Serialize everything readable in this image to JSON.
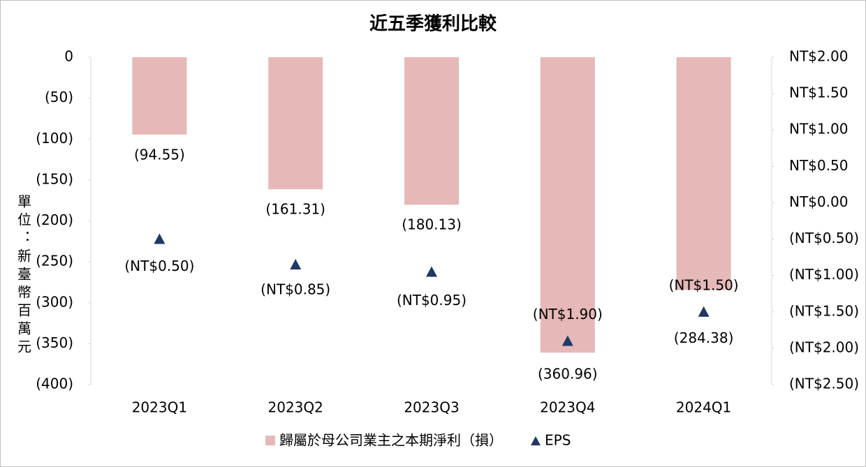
{
  "chart_data": {
    "type": "combo",
    "title": "近五季獲利比較",
    "y_label": "單位：新臺幣百萬元",
    "categories": [
      "2023Q1",
      "2023Q2",
      "2023Q3",
      "2023Q4",
      "2024Q1"
    ],
    "series": [
      {
        "name": "歸屬於母公司業主之本期淨利（損）",
        "type": "bar",
        "color": "#e6b8b7",
        "values": [
          -94.55,
          -161.31,
          -180.13,
          -360.96,
          -284.38
        ],
        "value_labels": [
          "(94.55)",
          "(161.31)",
          "(180.13)",
          "(360.96)",
          "(284.38)"
        ]
      },
      {
        "name": "EPS",
        "type": "scatter",
        "axis": "y2",
        "color": "#1f3864",
        "values": [
          -0.5,
          -0.85,
          -0.95,
          -1.9,
          -1.5
        ],
        "value_labels": [
          "(NT$0.50)",
          "(NT$0.85)",
          "(NT$0.95)",
          "(NT$1.90)",
          "(NT$1.50)"
        ]
      }
    ],
    "ylim": [
      -400,
      0
    ],
    "yticks": [
      0,
      {
        "value": -50,
        "label": "(50)"
      },
      {
        "value": -100,
        "label": "(100)"
      },
      {
        "value": -150,
        "label": "(150)"
      },
      {
        "value": -200,
        "label": "(200)"
      },
      {
        "value": -250,
        "label": "(250)"
      },
      {
        "value": -300,
        "label": "(300)"
      },
      {
        "value": -350,
        "label": "(350)"
      },
      {
        "value": -400,
        "label": "(400)"
      }
    ],
    "y2lim": [
      -2.5,
      2
    ],
    "y2ticks": [
      {
        "value": 2,
        "label": "NT$2.00"
      },
      {
        "value": 1.5,
        "label": "NT$1.50"
      },
      {
        "value": 1,
        "label": "NT$1.00"
      },
      {
        "value": 0.5,
        "label": "NT$0.50"
      },
      {
        "value": 0,
        "label": "NT$0.00"
      },
      {
        "value": -0.5,
        "label": "(NT$0.50)"
      },
      {
        "value": -1,
        "label": "(NT$1.00)"
      },
      {
        "value": -1.5,
        "label": "(NT$1.50)"
      },
      {
        "value": -2,
        "label": "(NT$2.00)"
      },
      {
        "value": -2.5,
        "label": "(NT$2.50)"
      }
    ],
    "negative_color": "#ff0000",
    "legend": "bottom"
  }
}
